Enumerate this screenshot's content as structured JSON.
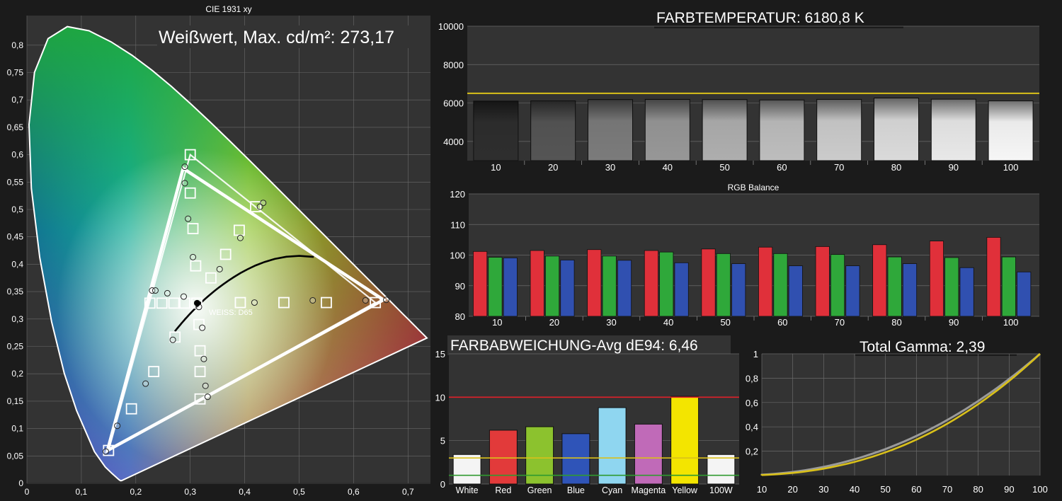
{
  "colors": {
    "background": "#1b1b1b",
    "panel": "#333333",
    "grid": "#6a6a6a",
    "axis_text": "#ffffff",
    "reference_yellow": "#d9c01a",
    "reference_red": "#e0202a",
    "reference_green": "#2f9a2f",
    "rgb_red": "#e0303a",
    "rgb_green": "#2fa83a",
    "rgb_blue": "#3050b0"
  },
  "cie": {
    "panel_title": "CIE 1931 xy",
    "badge": "Weißwert, Max. cd/m²: 273,17",
    "white_label": "WEISS: D65",
    "white_point": [
      0.3127,
      0.329
    ],
    "x_ticks": [
      "0",
      "0,1",
      "0,2",
      "0,3",
      "0,4",
      "0,5",
      "0,6",
      "0,7"
    ],
    "y_ticks": [
      "0",
      "0,05",
      "0,1",
      "0,15",
      "0,2",
      "0,25",
      "0,3",
      "0,35",
      "0,4",
      "0,45",
      "0,5",
      "0,55",
      "0,6",
      "0,65",
      "0,7",
      "0,75",
      "0,8"
    ],
    "reference_gamut": [
      [
        0.64,
        0.33
      ],
      [
        0.3,
        0.6
      ],
      [
        0.15,
        0.06
      ]
    ],
    "measured_gamut": [
      [
        0.655,
        0.335
      ],
      [
        0.287,
        0.575
      ],
      [
        0.148,
        0.06
      ]
    ],
    "saturation_targets": [
      [
        0.3,
        0.6
      ],
      [
        0.3,
        0.53
      ],
      [
        0.305,
        0.465
      ],
      [
        0.31,
        0.397
      ],
      [
        0.312,
        0.329
      ],
      [
        0.42,
        0.505
      ],
      [
        0.39,
        0.462
      ],
      [
        0.365,
        0.418
      ],
      [
        0.338,
        0.375
      ],
      [
        0.64,
        0.33
      ],
      [
        0.55,
        0.33
      ],
      [
        0.472,
        0.33
      ],
      [
        0.392,
        0.33
      ],
      [
        0.15,
        0.06
      ],
      [
        0.192,
        0.136
      ],
      [
        0.233,
        0.204
      ],
      [
        0.272,
        0.267
      ],
      [
        0.226,
        0.329
      ],
      [
        0.248,
        0.329
      ],
      [
        0.27,
        0.329
      ],
      [
        0.29,
        0.329
      ],
      [
        0.318,
        0.242
      ],
      [
        0.318,
        0.204
      ],
      [
        0.318,
        0.154
      ],
      [
        0.316,
        0.29
      ]
    ],
    "measured_points": [
      [
        0.29,
        0.578
      ],
      [
        0.29,
        0.548
      ],
      [
        0.296,
        0.483
      ],
      [
        0.305,
        0.413
      ],
      [
        0.316,
        0.322
      ],
      [
        0.434,
        0.512
      ],
      [
        0.428,
        0.505
      ],
      [
        0.392,
        0.448
      ],
      [
        0.354,
        0.391
      ],
      [
        0.66,
        0.335
      ],
      [
        0.622,
        0.334
      ],
      [
        0.525,
        0.334
      ],
      [
        0.418,
        0.33
      ],
      [
        0.145,
        0.058
      ],
      [
        0.166,
        0.105
      ],
      [
        0.218,
        0.182
      ],
      [
        0.268,
        0.262
      ],
      [
        0.23,
        0.352
      ],
      [
        0.236,
        0.352
      ],
      [
        0.258,
        0.347
      ],
      [
        0.288,
        0.341
      ],
      [
        0.322,
        0.284
      ],
      [
        0.325,
        0.227
      ],
      [
        0.328,
        0.178
      ],
      [
        0.332,
        0.158
      ]
    ]
  },
  "colortemp": {
    "title": "FARBTEMPERATUR: 6180,8 K",
    "target": 6504,
    "y_range": [
      3000,
      10000
    ],
    "y_ticks": [
      "4000",
      "6000",
      "8000",
      "10000"
    ],
    "categories": [
      "10",
      "20",
      "30",
      "40",
      "50",
      "60",
      "70",
      "80",
      "90",
      "100"
    ],
    "values": [
      6100,
      6110,
      6180,
      6190,
      6180,
      6160,
      6190,
      6260,
      6200,
      6110
    ],
    "bar_colors": [
      "#2e2e2e",
      "#555555",
      "#7b7b7b",
      "#979797",
      "#aeaeae",
      "#bdbdbd",
      "#cbcbcb",
      "#dadada",
      "#e8e8e8",
      "#f6f6f6"
    ]
  },
  "rgb": {
    "title": "RGB Balance",
    "y_range": [
      80,
      120
    ],
    "y_ticks": [
      "80",
      "90",
      "100",
      "110",
      "120"
    ],
    "categories": [
      "10",
      "20",
      "30",
      "40",
      "50",
      "60",
      "70",
      "80",
      "90",
      "100"
    ],
    "series": [
      {
        "color": "#e0303a",
        "values": [
          101.2,
          101.5,
          101.8,
          101.5,
          102.0,
          102.6,
          102.8,
          103.4,
          104.6,
          105.8
        ]
      },
      {
        "color": "#2fa83a",
        "values": [
          99.3,
          99.7,
          99.7,
          101.0,
          100.5,
          100.5,
          100.2,
          99.4,
          99.2,
          99.4
        ]
      },
      {
        "color": "#3050b0",
        "values": [
          99.1,
          98.4,
          98.3,
          97.5,
          97.2,
          96.5,
          96.5,
          97.2,
          95.9,
          94.5
        ]
      }
    ]
  },
  "deltae": {
    "title": "FARBABWEICHUNG-Avg dE94: 6,46",
    "y_range": [
      0,
      15
    ],
    "y_ticks": [
      "0",
      "5",
      "10",
      "15"
    ],
    "thresholds": [
      10,
      3,
      1
    ],
    "categories": [
      "White",
      "Red",
      "Green",
      "Blue",
      "Cyan",
      "Magenta",
      "Yellow",
      "100W"
    ],
    "values": [
      3.4,
      6.2,
      6.6,
      5.8,
      8.8,
      6.9,
      10.1,
      3.4
    ],
    "bar_colors": [
      "#f4f4f4",
      "#e23a3a",
      "#8cc22e",
      "#2f54b8",
      "#8fd6f0",
      "#c06ab8",
      "#f3e500",
      "#f4f4f4"
    ]
  },
  "gamma": {
    "title": "Total Gamma: 2,39",
    "x_ticks": [
      "10",
      "20",
      "30",
      "40",
      "50",
      "60",
      "70",
      "80",
      "90",
      "100"
    ],
    "y_ticks": [
      "0,2",
      "0,4",
      "0,6",
      "0,8",
      "1"
    ],
    "target_gamma": 2.2,
    "measured_gamma": 2.39
  }
}
